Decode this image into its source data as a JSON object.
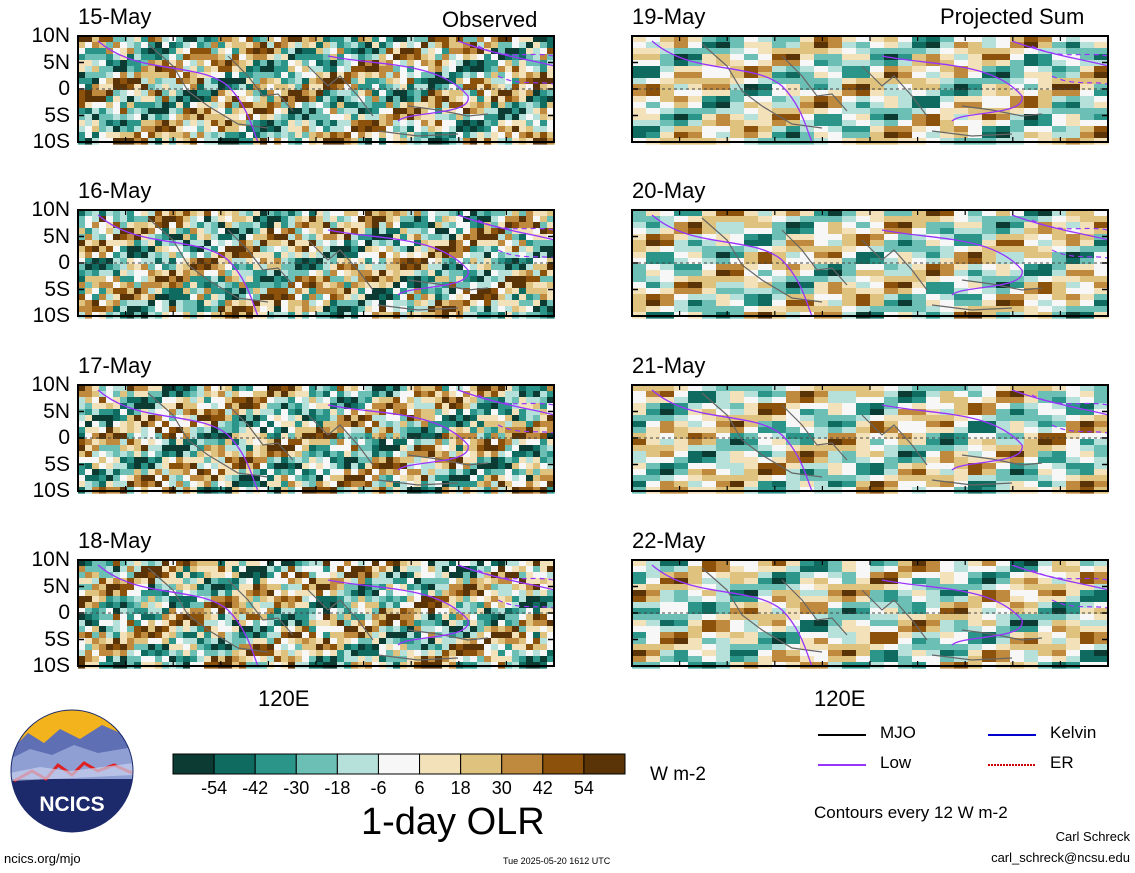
{
  "chart_data": {
    "type": "heatmap",
    "title": "1-day OLR",
    "units": "W m-2",
    "column_titles": [
      "Observed",
      "Projected Sum"
    ],
    "panels": [
      {
        "date": "15-May",
        "column": "Observed"
      },
      {
        "date": "16-May",
        "column": "Observed"
      },
      {
        "date": "17-May",
        "column": "Observed"
      },
      {
        "date": "18-May",
        "column": "Observed"
      },
      {
        "date": "19-May",
        "column": "Projected Sum"
      },
      {
        "date": "20-May",
        "column": "Projected Sum"
      },
      {
        "date": "21-May",
        "column": "Projected Sum"
      },
      {
        "date": "22-May",
        "column": "Projected Sum"
      }
    ],
    "y_ticks": [
      "10N",
      "5N",
      "0",
      "5S",
      "10S"
    ],
    "x_ticks": [
      "120E"
    ],
    "colorbar": {
      "ticks": [
        "-54",
        "-42",
        "-30",
        "-18",
        "-6",
        "6",
        "18",
        "30",
        "42",
        "54"
      ],
      "colors": [
        "#0b3b33",
        "#0f6b60",
        "#2b958a",
        "#6cbfb4",
        "#b6e1da",
        "#f7f7f7",
        "#f3e2b9",
        "#dfc27d",
        "#bf8a3d",
        "#8c510a",
        "#5a3306"
      ]
    },
    "legend": [
      {
        "label": "MJO",
        "color": "#000000",
        "style": "solid"
      },
      {
        "label": "Kelvin",
        "color": "#0000cc",
        "style": "solid"
      },
      {
        "label": "Low",
        "color": "#9933ff",
        "style": "solid"
      },
      {
        "label": "ER",
        "color": "#cc0000",
        "style": "dotted"
      }
    ],
    "contour_note": "Contours every 12 W m-2"
  },
  "footer": {
    "logo_text": "NCICS",
    "url": "ncics.org/mjo",
    "timestamp": "Tue 2025-05-20 1612 UTC",
    "author": "Carl Schreck",
    "email": "carl_schreck@ncsu.edu"
  }
}
